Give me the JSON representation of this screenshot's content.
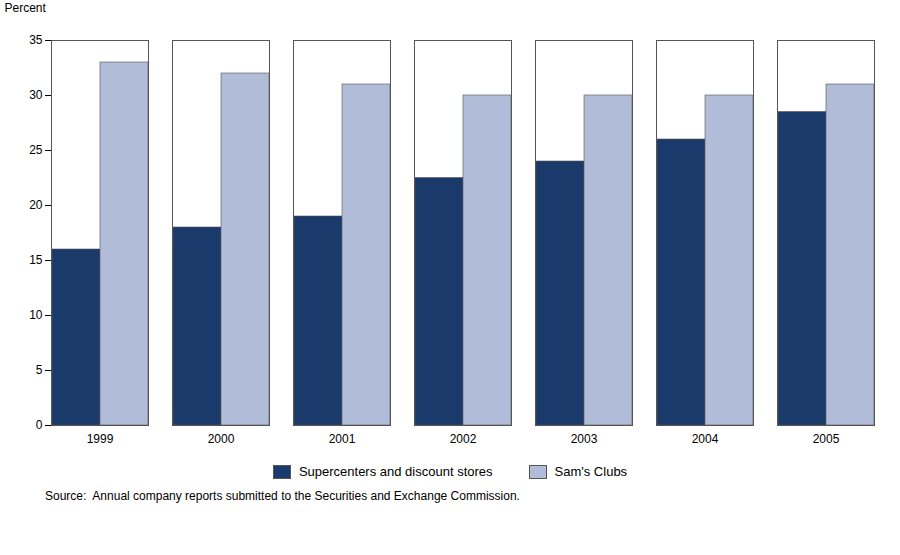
{
  "chart_data": {
    "type": "bar",
    "categories": [
      "1999",
      "2000",
      "2001",
      "2002",
      "2003",
      "2004",
      "2005"
    ],
    "series": [
      {
        "name": "Supercenters and discount stores",
        "color": "#1a3a6b",
        "values": [
          16,
          18,
          19,
          22.5,
          24,
          26,
          28.5
        ]
      },
      {
        "name": "Sam's Clubs",
        "color": "#b0bcd8",
        "values": [
          33,
          32,
          31,
          30,
          30,
          30,
          31
        ]
      }
    ],
    "ylabel": "Percent",
    "ylim": [
      0,
      35
    ],
    "yticks": [
      0,
      5,
      10,
      15,
      20,
      25,
      30,
      35
    ],
    "grid": false,
    "legend": "lower center",
    "annotations": [
      "Source:  Annual company reports submitted to the Securities and Exchange Commission."
    ]
  }
}
